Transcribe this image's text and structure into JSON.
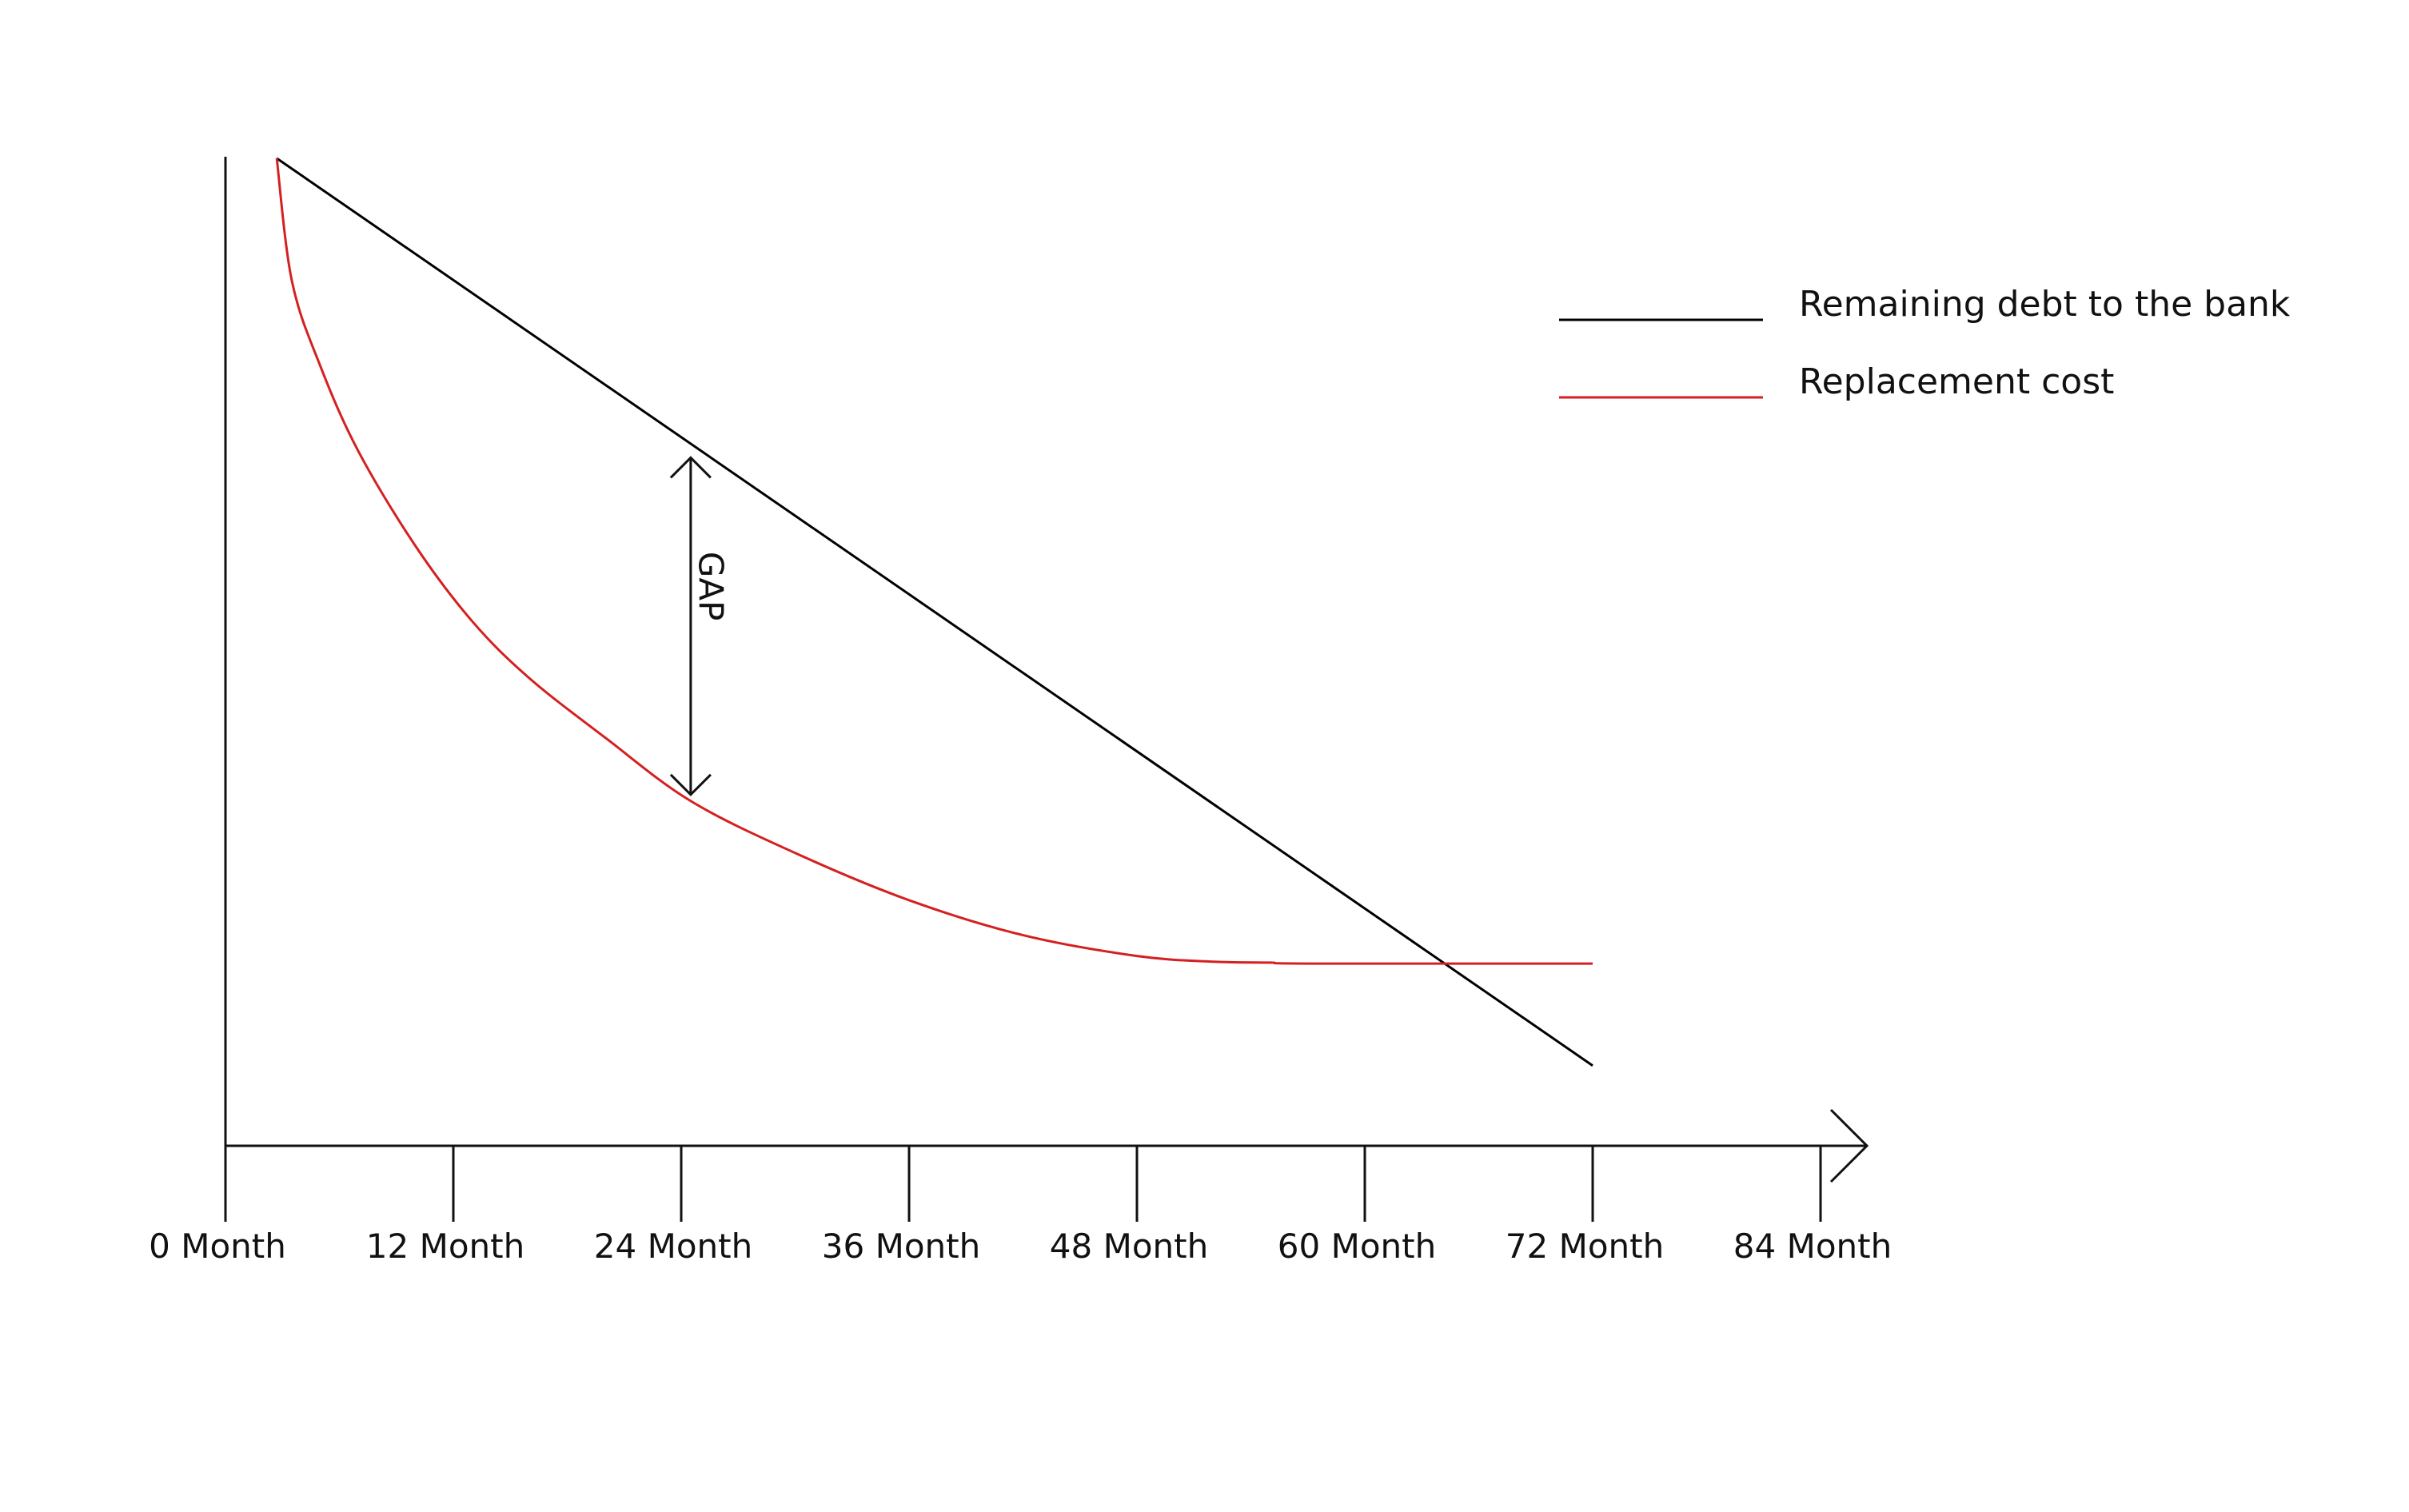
{
  "chart_data": {
    "type": "line",
    "title": "",
    "xlabel": "",
    "ylabel": "",
    "x_ticks": [
      "0 Month",
      "12 Month",
      "24 Month",
      "36 Month",
      "48 Month",
      "60 Month",
      "72 Month",
      "84 Month"
    ],
    "xlim": [
      0,
      84
    ],
    "ylim": [
      0,
      100
    ],
    "grid": false,
    "legend_position": "top-right",
    "series": [
      {
        "name": "Remaining debt to the bank",
        "color": "#000000",
        "x": [
          2.7,
          72
        ],
        "y": [
          100,
          4
        ]
      },
      {
        "name": "Replacement cost",
        "color": "#d42020",
        "x": [
          2.7,
          3.5,
          5,
          7,
          10,
          13,
          16,
          20,
          24.5,
          30,
          36,
          42,
          48,
          52,
          55,
          57,
          72
        ],
        "y": [
          100,
          87,
          78,
          69,
          59,
          51,
          45,
          38.7,
          32,
          26.5,
          21.5,
          17.8,
          15.6,
          15,
          14.9,
          14.8,
          14.8
        ]
      }
    ],
    "annotations": [
      {
        "text": "GAP",
        "x": 24.5,
        "y_from": 32,
        "y_to": 69
      }
    ]
  }
}
